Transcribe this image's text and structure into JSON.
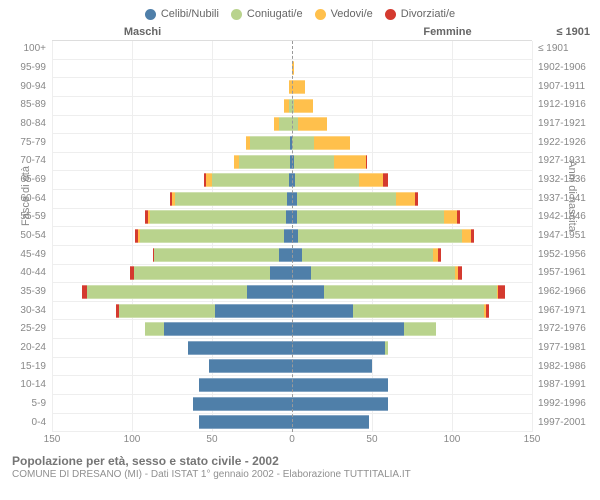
{
  "legend": [
    {
      "label": "Celibi/Nubili",
      "color": "#4f7fa9"
    },
    {
      "label": "Coniugati/e",
      "color": "#b9d38d"
    },
    {
      "label": "Vedovi/e",
      "color": "#ffc04c"
    },
    {
      "label": "Divorziati/e",
      "color": "#d43a2f"
    }
  ],
  "headers": {
    "male": "Maschi",
    "female": "Femmine",
    "birth_right_hdr": "≤ 1901"
  },
  "axis_titles": {
    "left": "Fasce di età",
    "right": "Anni di nascita"
  },
  "colors": {
    "bg": "#ffffff",
    "grid": "#eeeeee",
    "text": "#888888",
    "single": "#4f7fa9",
    "married": "#b9d38d",
    "widowed": "#ffc04c",
    "divorced": "#d43a2f"
  },
  "x": {
    "max": 150,
    "ticks": [
      150,
      100,
      50,
      0,
      50,
      100,
      150
    ]
  },
  "age_labels": [
    "100+",
    "95-99",
    "90-94",
    "85-89",
    "80-84",
    "75-79",
    "70-74",
    "65-69",
    "60-64",
    "55-59",
    "50-54",
    "45-49",
    "40-44",
    "35-39",
    "30-34",
    "25-29",
    "20-24",
    "15-19",
    "10-14",
    "5-9",
    "0-4"
  ],
  "birth_labels": [
    "≤ 1901",
    "1902-1906",
    "1907-1911",
    "1912-1916",
    "1917-1921",
    "1922-1926",
    "1927-1931",
    "1932-1936",
    "1937-1941",
    "1942-1946",
    "1947-1951",
    "1952-1956",
    "1957-1961",
    "1962-1966",
    "1967-1971",
    "1972-1976",
    "1977-1981",
    "1982-1986",
    "1987-1991",
    "1992-1996",
    "1997-2001"
  ],
  "rows": [
    {
      "m": [
        0,
        0,
        0,
        0
      ],
      "f": [
        0,
        0,
        0,
        0
      ]
    },
    {
      "m": [
        0,
        0,
        0,
        0
      ],
      "f": [
        0,
        0,
        1,
        0
      ]
    },
    {
      "m": [
        0,
        0,
        2,
        0
      ],
      "f": [
        0,
        0,
        8,
        0
      ]
    },
    {
      "m": [
        0,
        2,
        3,
        0
      ],
      "f": [
        0,
        1,
        12,
        0
      ]
    },
    {
      "m": [
        0,
        8,
        3,
        0
      ],
      "f": [
        0,
        4,
        18,
        0
      ]
    },
    {
      "m": [
        1,
        25,
        3,
        0
      ],
      "f": [
        0,
        14,
        22,
        0
      ]
    },
    {
      "m": [
        1,
        32,
        3,
        0
      ],
      "f": [
        1,
        25,
        20,
        1
      ]
    },
    {
      "m": [
        2,
        48,
        4,
        1
      ],
      "f": [
        2,
        40,
        15,
        3
      ]
    },
    {
      "m": [
        3,
        70,
        2,
        1
      ],
      "f": [
        3,
        62,
        12,
        2
      ]
    },
    {
      "m": [
        4,
        85,
        1,
        2
      ],
      "f": [
        3,
        92,
        8,
        2
      ]
    },
    {
      "m": [
        5,
        90,
        1,
        2
      ],
      "f": [
        4,
        102,
        6,
        2
      ]
    },
    {
      "m": [
        8,
        78,
        0,
        1
      ],
      "f": [
        6,
        82,
        3,
        2
      ]
    },
    {
      "m": [
        14,
        85,
        0,
        2
      ],
      "f": [
        12,
        90,
        2,
        2
      ]
    },
    {
      "m": [
        28,
        100,
        0,
        3
      ],
      "f": [
        20,
        108,
        1,
        4
      ]
    },
    {
      "m": [
        48,
        60,
        0,
        2
      ],
      "f": [
        38,
        82,
        1,
        2
      ]
    },
    {
      "m": [
        80,
        12,
        0,
        0
      ],
      "f": [
        70,
        20,
        0,
        0
      ]
    },
    {
      "m": [
        65,
        0,
        0,
        0
      ],
      "f": [
        58,
        2,
        0,
        0
      ]
    },
    {
      "m": [
        52,
        0,
        0,
        0
      ],
      "f": [
        50,
        0,
        0,
        0
      ]
    },
    {
      "m": [
        58,
        0,
        0,
        0
      ],
      "f": [
        60,
        0,
        0,
        0
      ]
    },
    {
      "m": [
        62,
        0,
        0,
        0
      ],
      "f": [
        60,
        0,
        0,
        0
      ]
    },
    {
      "m": [
        58,
        0,
        0,
        0
      ],
      "f": [
        48,
        0,
        0,
        0
      ]
    }
  ],
  "caption": {
    "title": "Popolazione per età, sesso e stato civile - 2002",
    "subtitle": "COMUNE DI DRESANO (MI) - Dati ISTAT 1° gennaio 2002 - Elaborazione TUTTITALIA.IT"
  }
}
